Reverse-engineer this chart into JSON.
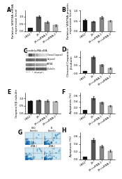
{
  "panel_A": {
    "label": "A",
    "ylabel": "Relative WNT8A mRNA\nexpression level",
    "bars": [
      0.22,
      1.0,
      0.62,
      0.4
    ],
    "errors": [
      0.03,
      0.09,
      0.07,
      0.05
    ],
    "colors": [
      "#111111",
      "#555555",
      "#888888",
      "#bbbbbb"
    ],
    "ylim": [
      0,
      1.4
    ],
    "yticks": [
      0.0,
      0.5,
      1.0
    ]
  },
  "panel_B": {
    "label": "B",
    "ylabel": "Relative WNT8A protein\nexpression level",
    "bars": [
      0.55,
      0.48,
      0.68,
      0.5
    ],
    "errors": [
      0.05,
      0.04,
      0.06,
      0.04
    ],
    "colors": [
      "#111111",
      "#555555",
      "#888888",
      "#bbbbbb"
    ],
    "ylim": [
      0,
      1.0
    ],
    "yticks": [
      0.0,
      0.5,
      1.0
    ]
  },
  "panel_D": {
    "label": "D",
    "ylabel": "Cleaved Caspase3/\nβ-tubulin",
    "bars": [
      0.12,
      1.0,
      0.52,
      0.32
    ],
    "errors": [
      0.02,
      0.1,
      0.06,
      0.04
    ],
    "colors": [
      "#111111",
      "#555555",
      "#888888",
      "#bbbbbb"
    ],
    "ylim": [
      0,
      1.4
    ],
    "yticks": [
      0.0,
      0.5,
      1.0
    ]
  },
  "panel_E": {
    "label": "E",
    "ylabel": "Caspase3/β-tubulin",
    "bars": [
      0.82,
      0.88,
      0.85,
      0.8
    ],
    "errors": [
      0.05,
      0.06,
      0.05,
      0.04
    ],
    "colors": [
      "#111111",
      "#555555",
      "#888888",
      "#bbbbbb"
    ],
    "ylim": [
      0,
      1.4
    ],
    "yticks": [
      0.0,
      0.5,
      1.0
    ]
  },
  "panel_F": {
    "label": "F",
    "ylabel": "Apoptosis (%)",
    "bars": [
      0.1,
      0.52,
      0.36,
      0.25
    ],
    "errors": [
      0.01,
      0.05,
      0.04,
      0.03
    ],
    "colors": [
      "#111111",
      "#555555",
      "#888888",
      "#bbbbbb"
    ],
    "ylim": [
      0,
      0.7
    ],
    "yticks": [
      0.0,
      0.2,
      0.4,
      0.6
    ]
  },
  "xlabels": [
    "HBE2",
    "LR",
    "LR+siRNA-1",
    "LR+siRNA-2"
  ],
  "background_color": "#ffffff",
  "bar_width": 0.55,
  "tick_fontsize": 3.0,
  "label_fontsize": 3.2,
  "panel_label_fontsize": 5.5
}
